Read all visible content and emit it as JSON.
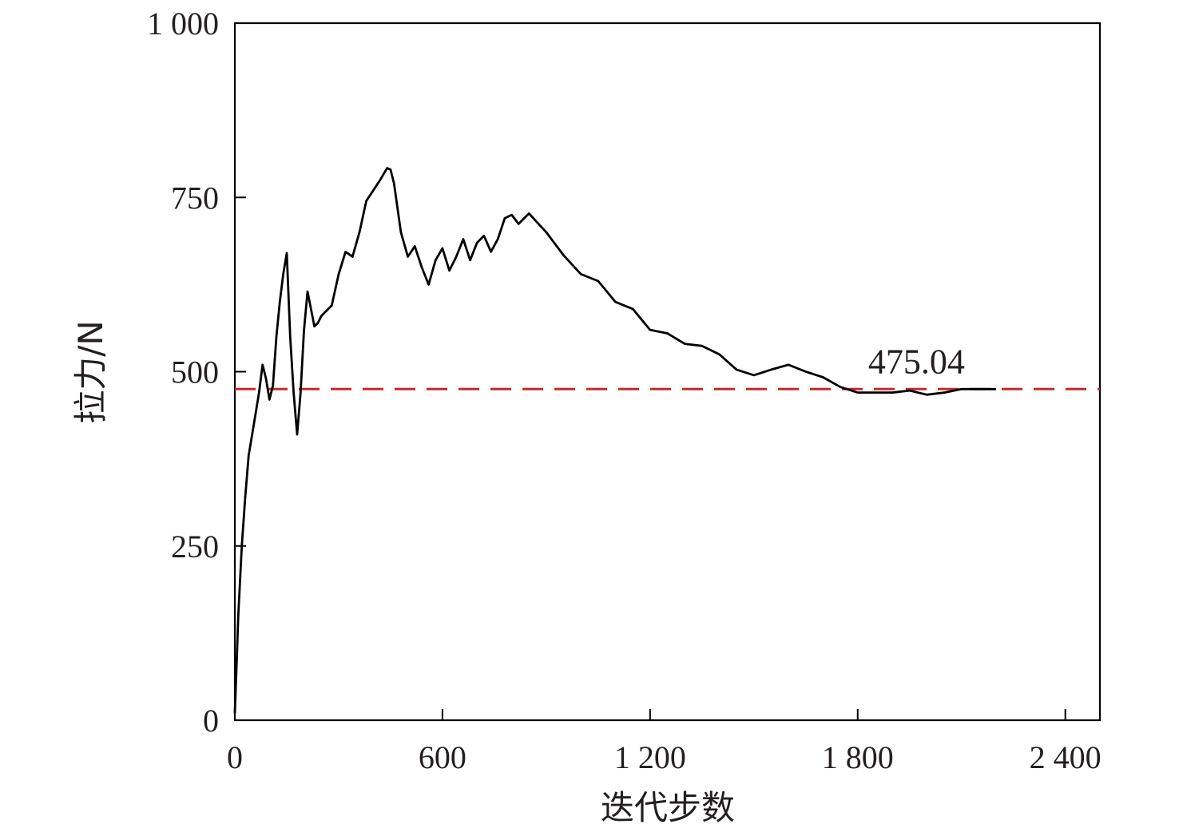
{
  "chart_data": {
    "type": "line",
    "title": "",
    "xlabel": "迭代步数",
    "ylabel": "拉力/N",
    "xlim": [
      0,
      2500
    ],
    "ylim": [
      0,
      1000
    ],
    "x_ticks": [
      0,
      600,
      1200,
      1800,
      2400
    ],
    "x_tick_labels": [
      "0",
      "600",
      "1 200",
      "1 800",
      "2 400"
    ],
    "y_ticks": [
      0,
      250,
      500,
      750,
      1000
    ],
    "y_tick_labels": [
      "0",
      "250",
      "500",
      "750",
      "1 000"
    ],
    "grid": false,
    "reference_line": {
      "value": 475.04,
      "label": "475.04",
      "color": "#c8282d",
      "style": "dashed"
    },
    "series": [
      {
        "color": "#000000",
        "x": [
          0,
          5,
          10,
          15,
          20,
          30,
          40,
          50,
          60,
          70,
          80,
          90,
          100,
          110,
          120,
          130,
          140,
          150,
          160,
          170,
          180,
          190,
          200,
          210,
          220,
          230,
          240,
          250,
          260,
          280,
          300,
          320,
          340,
          360,
          380,
          400,
          420,
          440,
          450,
          460,
          470,
          480,
          500,
          520,
          540,
          560,
          580,
          600,
          620,
          640,
          660,
          680,
          700,
          720,
          740,
          760,
          780,
          800,
          820,
          850,
          900,
          950,
          1000,
          1050,
          1100,
          1150,
          1200,
          1250,
          1300,
          1350,
          1400,
          1450,
          1500,
          1550,
          1600,
          1650,
          1700,
          1750,
          1800,
          1850,
          1900,
          1950,
          2000,
          2050,
          2100,
          2150,
          2200
        ],
        "y": [
          10,
          80,
          150,
          200,
          250,
          320,
          380,
          410,
          440,
          470,
          510,
          490,
          460,
          480,
          550,
          600,
          640,
          670,
          550,
          470,
          410,
          470,
          560,
          615,
          590,
          565,
          570,
          580,
          585,
          595,
          640,
          672,
          665,
          700,
          745,
          760,
          775,
          792,
          790,
          770,
          735,
          700,
          665,
          680,
          650,
          625,
          660,
          677,
          645,
          665,
          690,
          660,
          685,
          695,
          672,
          690,
          720,
          725,
          712,
          727,
          700,
          667,
          640,
          630,
          600,
          590,
          560,
          555,
          540,
          537,
          525,
          503,
          495,
          503,
          510,
          500,
          492,
          478,
          470,
          470,
          470,
          473,
          467,
          470,
          475,
          475,
          475
        ]
      }
    ]
  }
}
